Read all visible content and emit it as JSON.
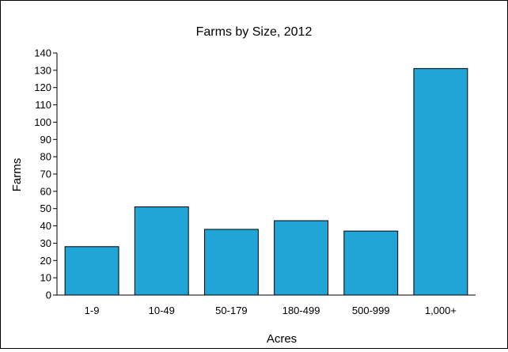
{
  "chart_data": {
    "type": "bar",
    "title": "Farms by Size, 2012",
    "xlabel": "Acres",
    "ylabel": "Farms",
    "categories": [
      "1-9",
      "10-49",
      "50-179",
      "180-499",
      "500-999",
      "1,000+"
    ],
    "values": [
      28,
      51,
      38,
      43,
      37,
      131
    ],
    "ylim": [
      0,
      140
    ],
    "ytick_step": 10,
    "grid": false,
    "legend": "none",
    "colors": {
      "bar": "#21A4D6",
      "bar_stroke": "#000000",
      "axis": "#000000",
      "background": "#ffffff"
    }
  }
}
